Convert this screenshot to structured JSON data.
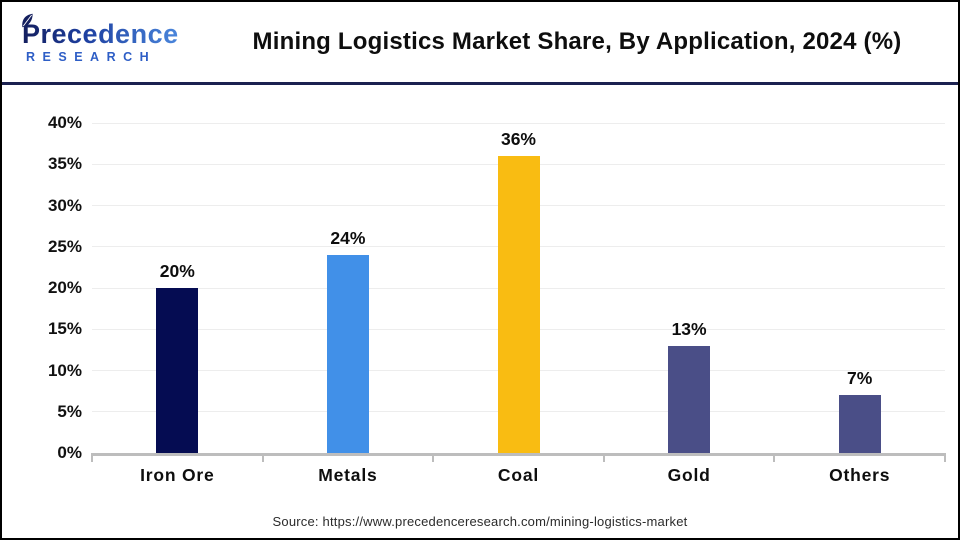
{
  "header": {
    "logo": {
      "brand_top": "Precedence",
      "brand_bottom": "RESEARCH"
    },
    "title": "Mining Logistics Market Share, By Application, 2024 (%)"
  },
  "chart_data": {
    "type": "bar",
    "title": "Mining Logistics Market Share, By Application, 2024 (%)",
    "categories": [
      "Iron Ore",
      "Metals",
      "Coal",
      "Gold",
      "Others"
    ],
    "values": [
      20,
      24,
      36,
      13,
      7
    ],
    "value_labels": [
      "20%",
      "24%",
      "36%",
      "13%",
      "7%"
    ],
    "bar_colors": [
      "#050c52",
      "#4190e8",
      "#f9bc12",
      "#4a4e87",
      "#4a4e87"
    ],
    "xlabel": "",
    "ylabel": "",
    "ylim": [
      0,
      40
    ],
    "ytick_step": 5,
    "ytick_labels": [
      "0%",
      "5%",
      "10%",
      "15%",
      "20%",
      "25%",
      "30%",
      "35%",
      "40%"
    ],
    "grid": true,
    "legend": false
  },
  "source": {
    "text": "Source: https://www.precedenceresearch.com/mining-logistics-market"
  },
  "colors": {
    "header_rule": "#1b2150",
    "baseline": "#bdbdbd",
    "gridline": "#ededed",
    "logo_navy": "#141f5e",
    "logo_blue": "#4a86dc",
    "research_blue": "#2e5ec6"
  }
}
